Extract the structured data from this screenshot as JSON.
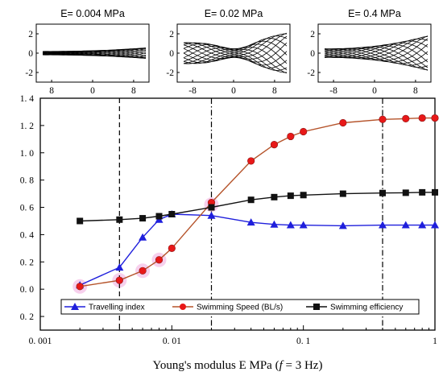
{
  "insets": [
    {
      "title": "E= 0.004 MPa",
      "yticks": [
        "2",
        "0",
        "-2"
      ],
      "xticks": [
        "8",
        "0",
        "8"
      ],
      "amplitude": 0.12,
      "tailAmp": 0.55,
      "headAmp": 0.18
    },
    {
      "title": "E= 0.02 MPa",
      "yticks": [
        "2",
        "0",
        "-2"
      ],
      "xticks": [
        "-8",
        "0",
        "8"
      ],
      "amplitude": 0.25,
      "tailAmp": 2.1,
      "headAmp": 1.1
    },
    {
      "title": "E= 0.4 MPa",
      "yticks": [
        "2",
        "0",
        "-2"
      ],
      "xticks": [
        "-8",
        "0",
        "8"
      ],
      "amplitude": 0.25,
      "tailAmp": 1.8,
      "headAmp": 0.45
    }
  ],
  "chart_data": {
    "type": "line",
    "xscale": "log",
    "xlim": [
      0.001,
      1
    ],
    "ylim": [
      -0.3,
      1.4
    ],
    "xlabel": "Young's modulus E MPa (",
    "xlabel_f": "f",
    "xlabel_tail": " = 3 Hz)",
    "xticks": [
      {
        "value": 0.001,
        "label": "0. 001"
      },
      {
        "value": 0.01,
        "label": "0. 01"
      },
      {
        "value": 0.1,
        "label": "0. 1"
      },
      {
        "value": 1,
        "label": "1"
      }
    ],
    "yticks": [
      {
        "value": 1.4,
        "label": "1. 4"
      },
      {
        "value": 1.2,
        "label": "1. 2"
      },
      {
        "value": 1.0,
        "label": "1. 0"
      },
      {
        "value": 0.8,
        "label": "0. 8"
      },
      {
        "value": 0.6,
        "label": "0. 6"
      },
      {
        "value": 0.4,
        "label": "0. 4"
      },
      {
        "value": 0.2,
        "label": "0. 2"
      },
      {
        "value": 0.0,
        "label": "0. 0"
      },
      {
        "value": -0.2,
        "label": "0. 2"
      }
    ],
    "vlines": [
      {
        "x": 0.004,
        "style": "dash"
      },
      {
        "x": 0.02,
        "style": "dashdot"
      },
      {
        "x": 0.4,
        "style": "dashdot"
      }
    ],
    "series": [
      {
        "name": "Travelling index",
        "color": "#1f1fdc",
        "marker": "triangle",
        "x": [
          0.002,
          0.004,
          0.006,
          0.008,
          0.01,
          0.02,
          0.04,
          0.06,
          0.08,
          0.1,
          0.2,
          0.4,
          0.6,
          0.8,
          1.0
        ],
        "y": [
          0.03,
          0.16,
          0.38,
          0.51,
          0.55,
          0.54,
          0.49,
          0.475,
          0.47,
          0.47,
          0.465,
          0.47,
          0.47,
          0.47,
          0.47
        ]
      },
      {
        "name": "Swimming Speed (BL/s)",
        "color": "#e81818",
        "lineColor": "#b5532a",
        "marker": "circle",
        "x": [
          0.002,
          0.004,
          0.006,
          0.008,
          0.01,
          0.02,
          0.04,
          0.06,
          0.08,
          0.1,
          0.2,
          0.4,
          0.6,
          0.8,
          1.0
        ],
        "y": [
          0.02,
          0.065,
          0.135,
          0.215,
          0.3,
          0.635,
          0.94,
          1.06,
          1.12,
          1.155,
          1.22,
          1.245,
          1.25,
          1.255,
          1.255
        ]
      },
      {
        "name": "Swimming efficiency",
        "color": "#111111",
        "marker": "square",
        "x": [
          0.002,
          0.004,
          0.006,
          0.008,
          0.01,
          0.02,
          0.04,
          0.06,
          0.08,
          0.1,
          0.2,
          0.4,
          0.6,
          0.8,
          1.0
        ],
        "y": [
          0.5,
          0.51,
          0.52,
          0.535,
          0.55,
          0.6,
          0.655,
          0.675,
          0.685,
          0.69,
          0.7,
          0.705,
          0.707,
          0.71,
          0.71
        ]
      }
    ],
    "legend": {
      "placement": "bottom"
    }
  }
}
